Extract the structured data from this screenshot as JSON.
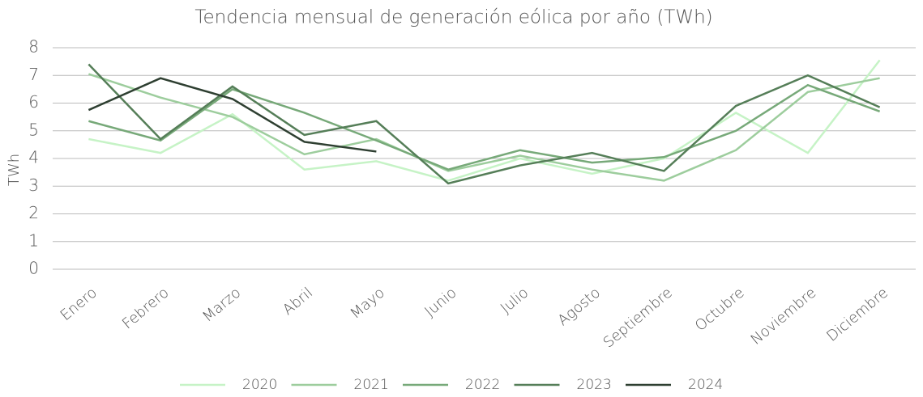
{
  "chart_data": {
    "type": "line",
    "title": "Tendencia mensual de generación eólica por año (TWh)",
    "y_label": "TWh",
    "categories": [
      "Enero",
      "Febrero",
      "Marzo",
      "Abril",
      "Mayo",
      "Junio",
      "Julio",
      "Agosto",
      "Septiembre",
      "Octubre",
      "Noviembre",
      "Diciembre"
    ],
    "series": [
      {
        "name": "2020",
        "color": "#c6f3c6",
        "values": [
          4.7,
          4.2,
          5.6,
          3.6,
          3.9,
          3.2,
          4.0,
          3.45,
          4.0,
          5.65,
          4.2,
          7.55
        ]
      },
      {
        "name": "2021",
        "color": "#9dcd9d",
        "values": [
          7.05,
          6.2,
          5.5,
          4.15,
          4.7,
          3.55,
          4.1,
          3.6,
          3.2,
          4.3,
          6.4,
          6.9
        ]
      },
      {
        "name": "2022",
        "color": "#77a979",
        "values": [
          5.35,
          4.65,
          6.5,
          5.65,
          4.65,
          3.6,
          4.3,
          3.85,
          4.05,
          5.0,
          6.65,
          5.7
        ]
      },
      {
        "name": "2023",
        "color": "#557e58",
        "values": [
          7.4,
          4.7,
          6.6,
          4.85,
          5.35,
          3.1,
          3.75,
          4.2,
          3.55,
          5.9,
          7.0,
          5.85
        ]
      },
      {
        "name": "2024",
        "color": "#2e3f31",
        "values": [
          5.75,
          6.9,
          6.15,
          4.6,
          4.25,
          null,
          null,
          null,
          null,
          null,
          null,
          null
        ]
      }
    ],
    "ylim": [
      0,
      8
    ],
    "yticks": [
      0,
      1,
      2,
      3,
      4,
      5,
      6,
      7,
      8
    ],
    "grid": true,
    "legend": "bottom"
  }
}
